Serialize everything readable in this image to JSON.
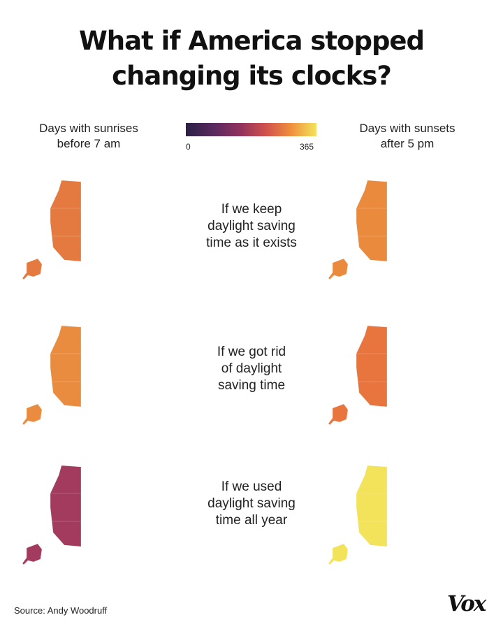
{
  "title_lines": [
    "What if America stopped",
    "changing its clocks?"
  ],
  "legend": {
    "left_label_lines": [
      "Days with sunrises",
      "before 7 am"
    ],
    "right_label_lines": [
      "Days with sunsets",
      "after 5 pm"
    ],
    "min": "0",
    "max": "365",
    "colors": [
      "#2b1f45",
      "#5a2a5f",
      "#93315e",
      "#d2534b",
      "#ef8e3d",
      "#f3e35a"
    ]
  },
  "rows": [
    {
      "caption_lines": [
        "If we keep",
        "daylight saving",
        "time as it exists"
      ],
      "sunrise_colors": [
        "#e47a3f",
        "#8f3160",
        "#ed9944",
        "#6a2a5e",
        "#5a2a5f",
        "#f2e060",
        "#d95f48",
        "#f5ec62"
      ],
      "sunset_colors": [
        "#ea8a3d",
        "#f3de58",
        "#ea8a3d",
        "#f3de58",
        "#eb8d40",
        "#e8813f",
        "#f2d056",
        "#e8813f"
      ]
    },
    {
      "caption_lines": [
        "If we got rid",
        "of daylight",
        "saving time"
      ],
      "sunrise_colors": [
        "#ea8c3f",
        "#e5793f",
        "#e97f3d",
        "#dc6a44",
        "#db6a45",
        "#ef9f45",
        "#e3763f",
        "#f3e35a"
      ],
      "sunset_colors": [
        "#e8743e",
        "#f4e85e",
        "#e8743e",
        "#f2d456",
        "#e27040",
        "#ef9f45",
        "#f3e35a",
        "#ef9342"
      ]
    },
    {
      "caption_lines": [
        "If we used",
        "daylight saving",
        "time all year"
      ],
      "sunrise_colors": [
        "#a23b5e",
        "#6c2b5e",
        "#6a2a5e",
        "#6a2a5e",
        "#4e2756",
        "#8a3160",
        "#5a2a5f",
        "#7b2e5f"
      ],
      "sunset_colors": [
        "#f3e35a",
        "#f3e35a",
        "#f3e35a",
        "#f3e35a",
        "#f3e35a",
        "#f3e35a",
        "#f3e35a",
        "#f3e35a"
      ]
    }
  ],
  "source": "Source: Andy Woodruff",
  "logo": "Vox"
}
